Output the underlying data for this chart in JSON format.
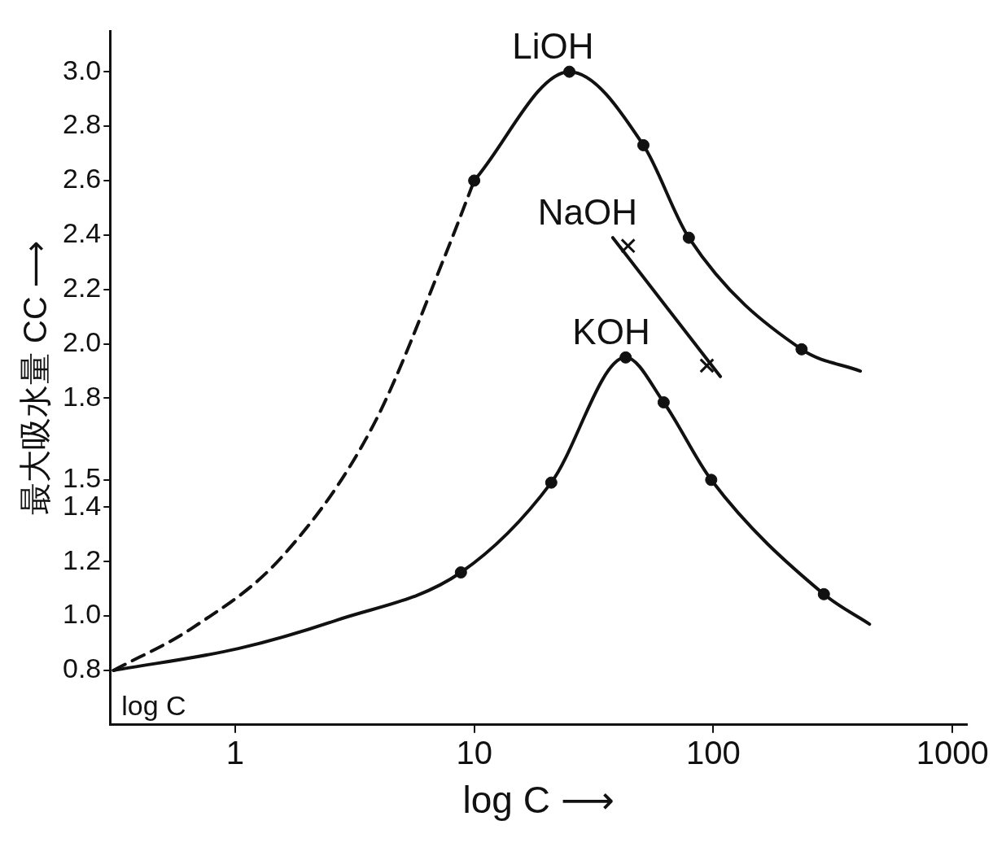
{
  "chart_data": {
    "type": "line",
    "xlabel": "log C ⟶",
    "ylabel": "最大吸水量 CC ⟶",
    "log": "x",
    "grid": false,
    "legend": false,
    "xlim": [
      0.31,
      1150
    ],
    "xticks": [
      1,
      10,
      100,
      1000
    ],
    "ylim": [
      0.6,
      3.15
    ],
    "yticks": [
      {
        "value": 0.8,
        "label": "0.8"
      },
      {
        "value": 1,
        "label": "1.0"
      },
      {
        "value": 1.2,
        "label": "1.2"
      },
      {
        "value": 1.4,
        "label": "1.4"
      },
      {
        "value": 1.5,
        "label": "1.5"
      },
      {
        "value": 1.8,
        "label": "1.8"
      },
      {
        "value": 2,
        "label": "2.0"
      },
      {
        "value": 2.2,
        "label": "2.2"
      },
      {
        "value": 2.4,
        "label": "2.4"
      },
      {
        "value": 2.6,
        "label": "2.6"
      },
      {
        "value": 2.8,
        "label": "2.8"
      },
      {
        "value": 3,
        "label": "3.0"
      }
    ],
    "series": [
      {
        "type": "line",
        "line_style": "dashed",
        "color": "#111111",
        "x": [
          0.31,
          0.66,
          1.58,
          3.78,
          7.6,
          10
        ],
        "values": [
          0.8,
          0.955,
          1.22,
          1.7,
          2.33,
          2.6
        ]
      },
      {
        "type": "line",
        "name": "LiOH",
        "line_style": "solid",
        "color": "#111111",
        "x": [
          10,
          25,
          51,
          79,
          234,
          412
        ],
        "values": [
          2.6,
          3.0,
          2.73,
          2.39,
          1.98,
          1.9
        ]
      },
      {
        "type": "scatter",
        "marker": "circle",
        "color": "#111111",
        "x": [
          10,
          25,
          51,
          79,
          234
        ],
        "values": [
          2.6,
          3.0,
          2.73,
          2.39,
          1.98
        ]
      },
      {
        "type": "line",
        "name": "NaOH",
        "line_style": "solid",
        "color": "#111111",
        "x": [
          38,
          107
        ],
        "values": [
          2.39,
          1.88
        ]
      },
      {
        "type": "scatter",
        "marker": "cross",
        "color": "#111111",
        "x": [
          44,
          94
        ],
        "values": [
          2.36,
          1.92
        ]
      },
      {
        "type": "line",
        "name": "KOH",
        "line_style": "solid",
        "color": "#111111",
        "x": [
          0.31,
          1.03,
          2.67,
          8.8,
          21,
          43,
          62,
          98,
          290,
          450
        ],
        "values": [
          0.8,
          0.88,
          0.985,
          1.16,
          1.49,
          1.95,
          1.785,
          1.5,
          1.08,
          0.97
        ]
      },
      {
        "type": "scatter",
        "marker": "circle",
        "color": "#111111",
        "x": [
          8.8,
          21,
          43,
          62,
          98,
          290
        ],
        "values": [
          1.16,
          1.49,
          1.95,
          1.785,
          1.5,
          1.08
        ]
      }
    ],
    "annotations": [
      "log C"
    ]
  }
}
